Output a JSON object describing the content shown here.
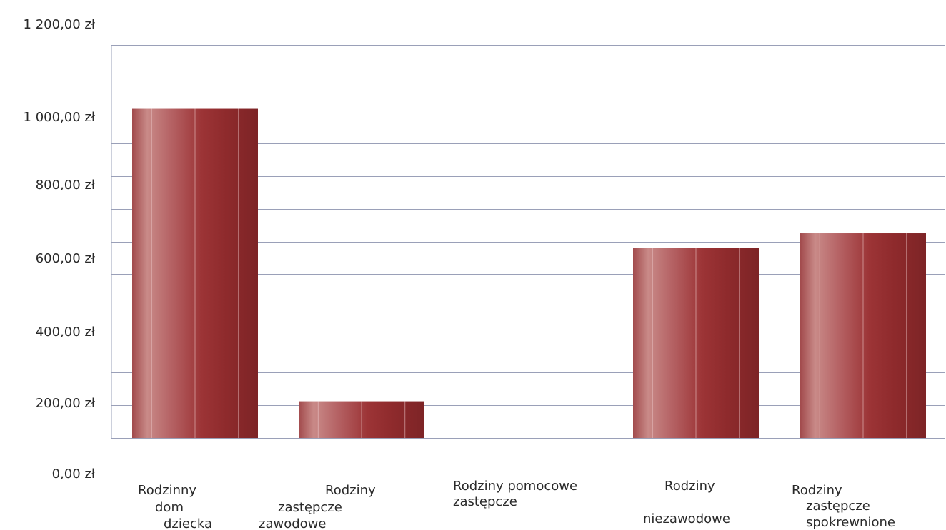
{
  "chart_data": {
    "type": "bar",
    "title": "",
    "xlabel": "",
    "ylabel": "",
    "categories": [
      [
        "Rodzinny",
        "dom",
        "dziecka"
      ],
      [
        "Rodziny",
        "zastępcze",
        "zawodowe"
      ],
      [
        "Rodziny pomocowe",
        "zastępcze"
      ],
      [
        "Rodziny",
        "niezawodowe"
      ],
      [
        "Rodziny",
        "zastępcze",
        "spokrewnione"
      ]
    ],
    "values": [
      1005,
      112,
      0,
      580,
      625
    ],
    "ylim": [
      0,
      1200
    ],
    "y_ticks": [
      {
        "value": 0,
        "label": "0,00 zł"
      },
      {
        "value": 200,
        "label": "200,00 zł"
      },
      {
        "value": 400,
        "label": "400,00 zł"
      },
      {
        "value": 600,
        "label": "600,00 zł"
      },
      {
        "value": 800,
        "label": "800,00 zł"
      },
      {
        "value": 1000,
        "label": "1 000,00 zł"
      },
      {
        "value": 1200,
        "label": "1 200,00 zł"
      }
    ],
    "grid": true,
    "legend": "none",
    "colors": {
      "bar_dark": "#8e2a2c",
      "bar_light": "#c98a88",
      "grid": "#9aa0b8"
    }
  }
}
